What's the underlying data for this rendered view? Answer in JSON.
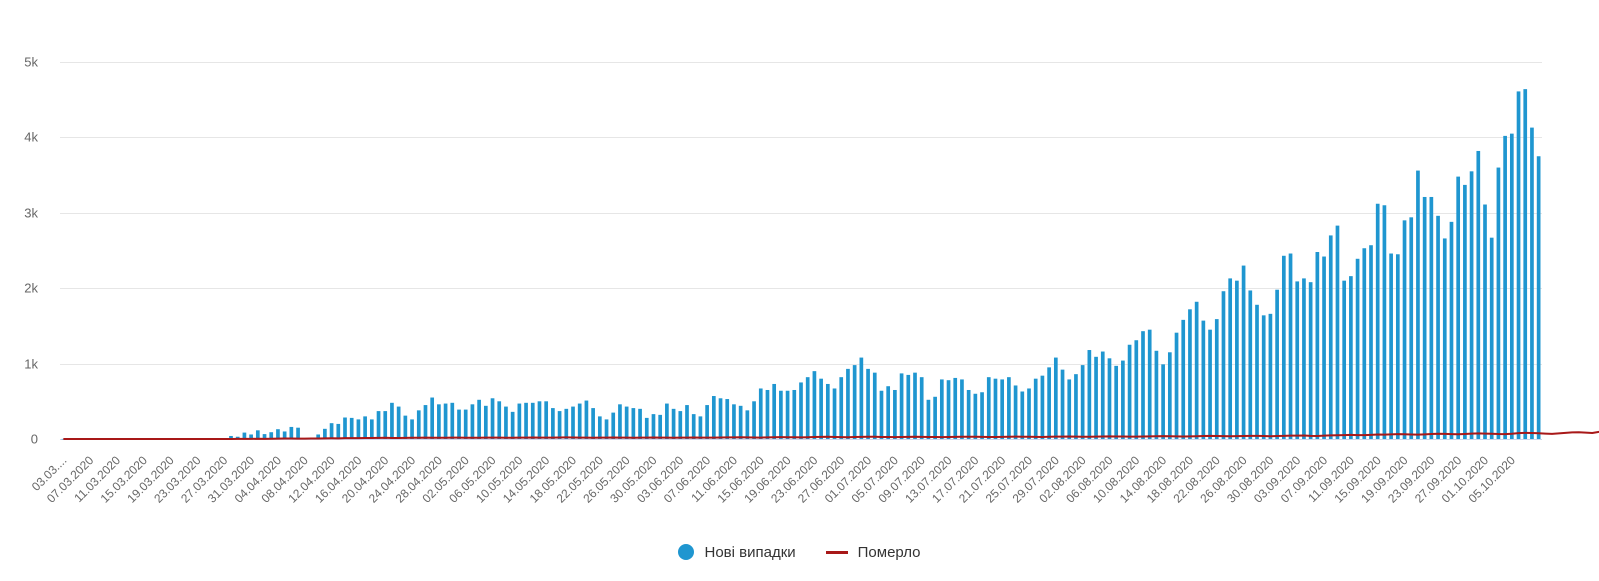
{
  "chart_data": {
    "type": "bar",
    "start_date": "2020-03-03",
    "x_tick_labels": [
      "03.03....",
      "07.03.2020",
      "11.03.2020",
      "15.03.2020",
      "19.03.2020",
      "23.03.2020",
      "27.03.2020",
      "31.03.2020",
      "04.04.2020",
      "08.04.2020",
      "12.04.2020",
      "16.04.2020",
      "20.04.2020",
      "24.04.2020",
      "28.04.2020",
      "02.05.2020",
      "06.05.2020",
      "10.05.2020",
      "14.05.2020",
      "18.05.2020",
      "22.05.2020",
      "26.05.2020",
      "30.05.2020",
      "03.06.2020",
      "07.06.2020",
      "11.06.2020",
      "15.06.2020",
      "19.06.2020",
      "23.06.2020",
      "27.06.2020",
      "01.07.2020",
      "05.07.2020",
      "09.07.2020",
      "13.07.2020",
      "17.07.2020",
      "21.07.2020",
      "25.07.2020",
      "29.07.2020",
      "02.08.2020",
      "06.08.2020",
      "10.08.2020",
      "14.08.2020",
      "18.08.2020",
      "22.08.2020",
      "26.08.2020",
      "30.08.2020",
      "03.09.2020",
      "07.09.2020",
      "11.09.2020",
      "15.09.2020",
      "19.09.2020",
      "23.09.2020",
      "27.09.2020",
      "01.10.2020",
      "05.10.2020"
    ],
    "y_tick_labels": [
      "0",
      "1k",
      "2k",
      "3k",
      "4k",
      "5k"
    ],
    "y_tick_values": [
      0,
      1000,
      2000,
      3000,
      4000,
      5000
    ],
    "ylim": [
      0,
      5000
    ],
    "grid": true,
    "legend_position": "bottom-center",
    "series": [
      {
        "name": "Нові випадки",
        "type": "bar",
        "color": "#1f96d0",
        "values": [
          1,
          0,
          0,
          0,
          0,
          0,
          0,
          0,
          0,
          0,
          0,
          0,
          1,
          0,
          0,
          0,
          0,
          2,
          0,
          0,
          1,
          6,
          3,
          5,
          13,
          40,
          30,
          85,
          60,
          115,
          65,
          90,
          130,
          100,
          160,
          150,
          0,
          0,
          60,
          135,
          210,
          200,
          285,
          280,
          260,
          300,
          260,
          370,
          370,
          480,
          430,
          310,
          260,
          380,
          450,
          550,
          460,
          470,
          480,
          390,
          390,
          460,
          520,
          440,
          540,
          500,
          430,
          360,
          470,
          480,
          480,
          500,
          500,
          410,
          370,
          400,
          430,
          470,
          510,
          410,
          300,
          260,
          350,
          460,
          430,
          410,
          400,
          280,
          330,
          320,
          470,
          400,
          370,
          450,
          330,
          300,
          450,
          570,
          540,
          530,
          460,
          440,
          380,
          500,
          670,
          650,
          730,
          640,
          640,
          650,
          750,
          820,
          900,
          800,
          730,
          670,
          820,
          930,
          980,
          1080,
          930,
          880,
          640,
          700,
          650,
          870,
          850,
          880,
          820,
          520,
          560,
          790,
          780,
          810,
          790,
          650,
          600,
          620,
          820,
          800,
          790,
          820,
          710,
          630,
          670,
          800,
          840,
          950,
          1080,
          920,
          790,
          860,
          980,
          1180,
          1090,
          1160,
          1070,
          970,
          1040,
          1250,
          1310,
          1430,
          1450,
          1170,
          990,
          1150,
          1410,
          1580,
          1720,
          1820,
          1570,
          1450,
          1590,
          1960,
          2130,
          2100,
          2300,
          1970,
          1780,
          1640,
          1660,
          1980,
          2430,
          2460,
          2090,
          2130,
          2080,
          2480,
          2420,
          2700,
          2830,
          2100,
          2160,
          2390,
          2530,
          2570,
          3120,
          3100,
          2460,
          2450,
          2900,
          2940,
          3560,
          3210,
          3210,
          2960,
          2660,
          2880,
          3480,
          3370,
          3550,
          3820,
          3110,
          2670,
          3600,
          4020,
          4050,
          4610,
          4640,
          4130,
          3750
        ]
      },
      {
        "name": "Померло",
        "type": "line",
        "color": "#a81818",
        "values": [
          0,
          0,
          0,
          0,
          0,
          0,
          0,
          0,
          0,
          0,
          0,
          0,
          0,
          0,
          0,
          0,
          0,
          0,
          0,
          0,
          0,
          0,
          0,
          0,
          0,
          0,
          1,
          2,
          2,
          3,
          2,
          4,
          5,
          6,
          6,
          5,
          5,
          6,
          7,
          9,
          10,
          9,
          11,
          12,
          11,
          13,
          14,
          15,
          16,
          14,
          13,
          15,
          16,
          17,
          18,
          17,
          16,
          16,
          18,
          19,
          17,
          16,
          17,
          18,
          19,
          18,
          17,
          16,
          18,
          19,
          20,
          19,
          18,
          19,
          20,
          21,
          20,
          19,
          18,
          17,
          18,
          19,
          20,
          19,
          18,
          17,
          18,
          19,
          20,
          19,
          18,
          17,
          18,
          19,
          20,
          19,
          18,
          19,
          20,
          21,
          22,
          23,
          21,
          20,
          19,
          22,
          24,
          25,
          24,
          23,
          22,
          24,
          26,
          28,
          30,
          27,
          25,
          24,
          26,
          28,
          30,
          29,
          27,
          26,
          25,
          27,
          28,
          29,
          28,
          27,
          26,
          25,
          27,
          28,
          29,
          30,
          29,
          28,
          27,
          26,
          28,
          30,
          31,
          30,
          29,
          28,
          27,
          29,
          31,
          32,
          33,
          31,
          30,
          29,
          31,
          33,
          35,
          34,
          33,
          32,
          31,
          33,
          35,
          36,
          38,
          37,
          35,
          33,
          35,
          37,
          39,
          41,
          40,
          38,
          36,
          38,
          40,
          42,
          41,
          39,
          37,
          40,
          42,
          45,
          44,
          46,
          41,
          39,
          44,
          48,
          50,
          52,
          54,
          52,
          51,
          55,
          60,
          58,
          62,
          64,
          63,
          60,
          58,
          62,
          66,
          70,
          68,
          65,
          63,
          67,
          72,
          75,
          72,
          70,
          66,
          65,
          70,
          78,
          82,
          80,
          76,
          72,
          68,
          75,
          82,
          88,
          90,
          85,
          80,
          95,
          100,
          55,
          45
        ]
      }
    ]
  }
}
